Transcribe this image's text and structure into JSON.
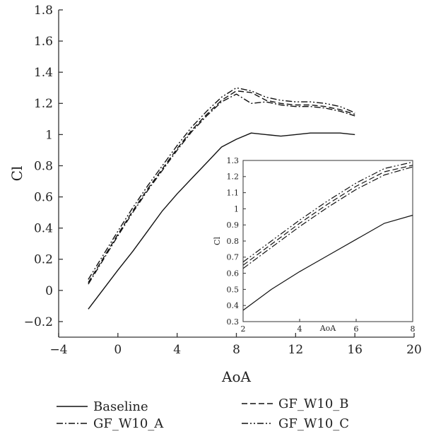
{
  "chart_data": [
    {
      "type": "line",
      "title": "",
      "xlabel": "AoA",
      "ylabel": "Cl",
      "xlim": [
        -4,
        20
      ],
      "ylim": [
        -0.3,
        1.8
      ],
      "xticks": [
        -4,
        0,
        4,
        8,
        12,
        16,
        20
      ],
      "xtick_labels": [
        "−4",
        "0",
        "4",
        "8",
        "12",
        "16",
        "20"
      ],
      "yticks": [
        -0.2,
        0,
        0.2,
        0.4,
        0.6,
        0.8,
        1,
        1.2,
        1.4,
        1.6,
        1.8
      ],
      "ytick_labels": [
        "−0.2",
        "0",
        "0.2",
        "0.4",
        "0.6",
        "0.8",
        "1",
        "1.2",
        "1.4",
        "1.6",
        "1.8"
      ],
      "grid": false,
      "legend": "bottom",
      "series": [
        {
          "name": "Baseline",
          "style": "solid",
          "x": [
            -2,
            0,
            1,
            2,
            3,
            4,
            5,
            6,
            7,
            8,
            9,
            10,
            11,
            12,
            13,
            14,
            15,
            16
          ],
          "y": [
            -0.12,
            0.13,
            0.25,
            0.38,
            0.51,
            0.62,
            0.72,
            0.82,
            0.92,
            0.97,
            1.01,
            1.0,
            0.99,
            1.0,
            1.01,
            1.01,
            1.01,
            1.0
          ]
        },
        {
          "name": "GF_W10_A",
          "style": "dashdot",
          "x": [
            -2,
            0,
            1,
            2,
            3,
            4,
            5,
            6,
            7,
            8,
            9,
            10,
            11,
            12,
            13,
            14,
            15,
            16
          ],
          "y": [
            0.04,
            0.35,
            0.5,
            0.64,
            0.77,
            0.9,
            1.02,
            1.12,
            1.21,
            1.26,
            1.2,
            1.21,
            1.19,
            1.18,
            1.18,
            1.17,
            1.15,
            1.12
          ]
        },
        {
          "name": "GF_W10_B",
          "style": "dashed",
          "x": [
            -2,
            0,
            1,
            2,
            3,
            4,
            5,
            6,
            7,
            8,
            9,
            10,
            11,
            12,
            13,
            14,
            15,
            16
          ],
          "y": [
            0.05,
            0.36,
            0.51,
            0.65,
            0.78,
            0.91,
            1.03,
            1.13,
            1.22,
            1.28,
            1.27,
            1.22,
            1.2,
            1.19,
            1.19,
            1.18,
            1.16,
            1.13
          ]
        },
        {
          "name": "GF_W10_C",
          "style": "dashdotdot",
          "x": [
            -2,
            0,
            1,
            2,
            3,
            4,
            5,
            6,
            7,
            8,
            9,
            10,
            11,
            12,
            13,
            14,
            15,
            16
          ],
          "y": [
            0.07,
            0.38,
            0.53,
            0.67,
            0.8,
            0.93,
            1.05,
            1.15,
            1.24,
            1.3,
            1.28,
            1.24,
            1.22,
            1.21,
            1.21,
            1.2,
            1.18,
            1.14
          ]
        }
      ]
    },
    {
      "type": "line",
      "title": "",
      "xlabel": "AoA",
      "ylabel": "Cl",
      "xlim": [
        2,
        8
      ],
      "ylim": [
        0.3,
        1.3
      ],
      "xticks": [
        2,
        4,
        6,
        8
      ],
      "xtick_labels": [
        "2",
        "4",
        "6",
        "8"
      ],
      "yticks": [
        0.3,
        0.4,
        0.5,
        0.6,
        0.7,
        0.8,
        0.9,
        1,
        1.1,
        1.2,
        1.3
      ],
      "ytick_labels": [
        "0.3",
        "0.4",
        "0.5",
        "0.6",
        "0.7",
        "0.8",
        "0.9",
        "1",
        "1.1",
        "1.2",
        "1.3"
      ],
      "grid": false,
      "series": [
        {
          "style": "solid",
          "x": [
            2,
            3,
            4,
            5,
            6,
            7,
            8
          ],
          "y": [
            0.37,
            0.5,
            0.61,
            0.71,
            0.81,
            0.91,
            0.96
          ]
        },
        {
          "style": "dashdot",
          "x": [
            2,
            3,
            4,
            5,
            6,
            7,
            8
          ],
          "y": [
            0.63,
            0.76,
            0.89,
            1.01,
            1.12,
            1.21,
            1.26
          ]
        },
        {
          "style": "dashed",
          "x": [
            2,
            3,
            4,
            5,
            6,
            7,
            8
          ],
          "y": [
            0.65,
            0.78,
            0.91,
            1.03,
            1.14,
            1.23,
            1.27
          ]
        },
        {
          "style": "dashdotdot",
          "x": [
            2,
            3,
            4,
            5,
            6,
            7,
            8
          ],
          "y": [
            0.67,
            0.8,
            0.93,
            1.05,
            1.16,
            1.25,
            1.29
          ]
        }
      ]
    }
  ]
}
